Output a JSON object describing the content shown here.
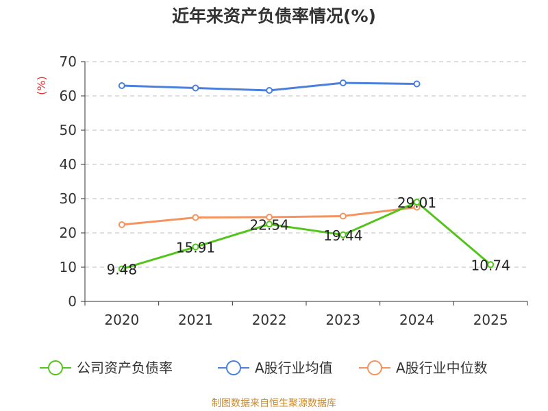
{
  "chart_data": {
    "type": "line",
    "title": "近年来资产负债率情况(%)",
    "ylabel": "(%)",
    "xlabel": "",
    "ylim": [
      0,
      70
    ],
    "yticks": [
      0,
      10,
      20,
      30,
      40,
      50,
      60,
      70
    ],
    "categories": [
      "2020",
      "2021",
      "2022",
      "2023",
      "2024",
      "2025"
    ],
    "series": [
      {
        "name": "公司资产负债率",
        "color": "#52c41a",
        "values": [
          9.48,
          15.91,
          22.54,
          19.44,
          29.01,
          10.74
        ],
        "labels": [
          "9.48",
          "15.91",
          "22.54",
          "19.44",
          "29.01",
          "10.74"
        ]
      },
      {
        "name": "A股行业均值",
        "color": "#4a7fdc",
        "values": [
          63.0,
          62.3,
          61.6,
          63.8,
          63.5,
          null
        ]
      },
      {
        "name": "A股行业中位数",
        "color": "#f4935e",
        "values": [
          22.4,
          24.5,
          24.6,
          24.9,
          27.5,
          null
        ]
      }
    ],
    "grid": true,
    "legend": "bottom"
  },
  "source": "制图数据来自恒生聚源数据库"
}
